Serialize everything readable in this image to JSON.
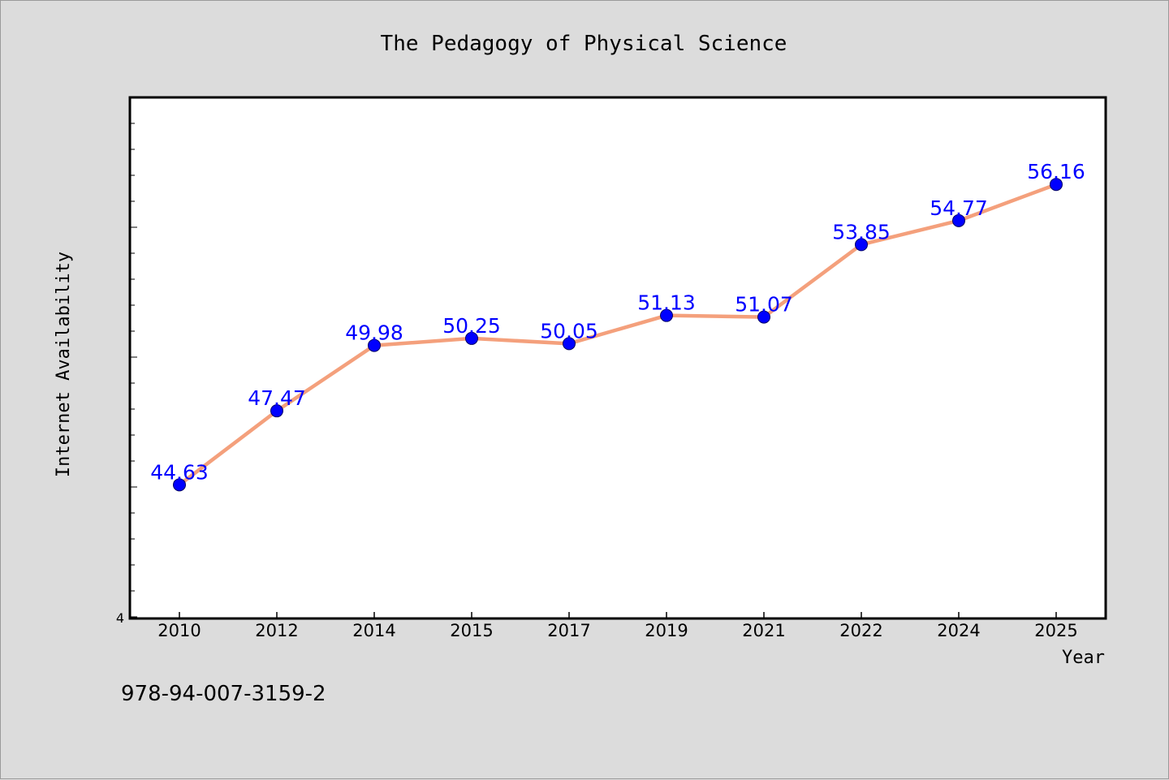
{
  "chart_data": {
    "type": "line",
    "title": "The Pedagogy of Physical Science",
    "xlabel": "Year",
    "ylabel": "Internet Availability",
    "categories": [
      "2010",
      "2012",
      "2014",
      "2015",
      "2017",
      "2019",
      "2021",
      "2022",
      "2024",
      "2025"
    ],
    "series": [
      {
        "values": [
          44.63,
          47.47,
          49.98,
          50.25,
          50.05,
          51.13,
          51.07,
          53.85,
          54.77,
          56.16
        ],
        "line_color": "#f4a07c",
        "marker_color": "#0000ff"
      }
    ],
    "data_labels": [
      "44.63",
      "47.47",
      "49.98",
      "50.25",
      "50.05",
      "51.13",
      "51.07",
      "53.85",
      "54.77",
      "56.16"
    ],
    "ylim": [
      39.5,
      59.5
    ],
    "ytick_labels": [
      "4"
    ],
    "grid": false,
    "legend": "none"
  },
  "footer": {
    "isbn": "978-94-007-3159-2"
  }
}
